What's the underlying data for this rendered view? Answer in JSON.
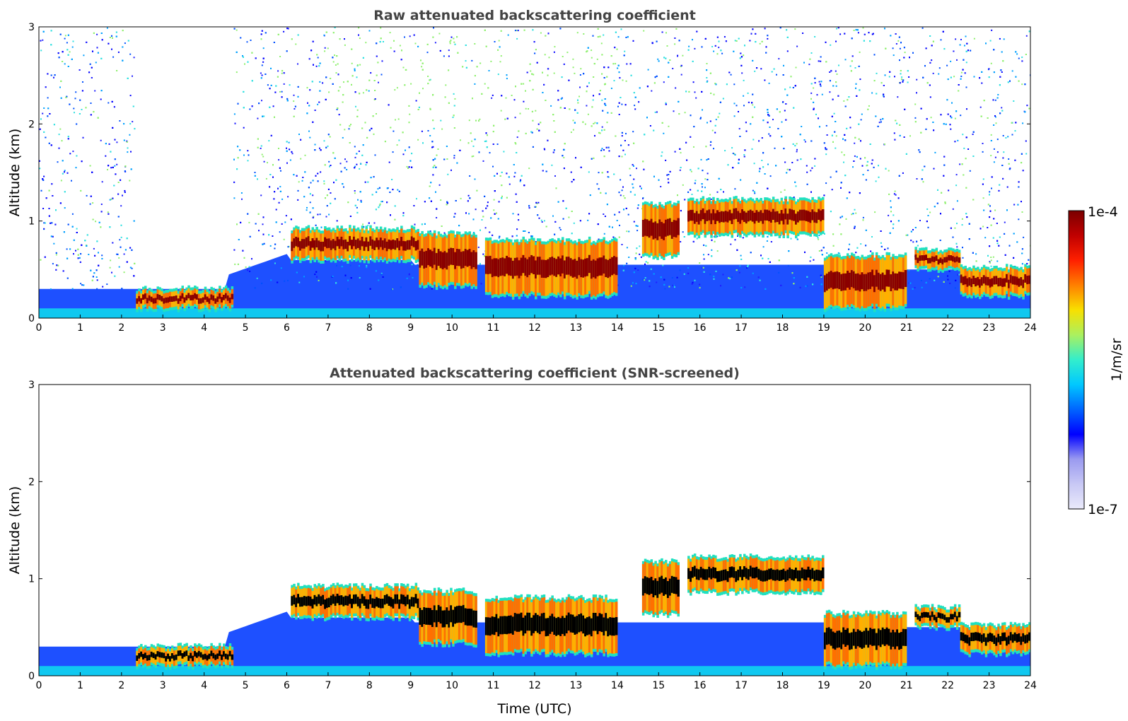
{
  "chart_data": [
    {
      "type": "heatmap",
      "title": "Raw attenuated backscattering coefficient",
      "xlabel": "",
      "ylabel": "Altitude (km)",
      "xlim": [
        0,
        24
      ],
      "ylim": [
        0,
        3
      ],
      "xticks": [
        "0",
        "1",
        "2",
        "3",
        "4",
        "5",
        "6",
        "7",
        "8",
        "9",
        "10",
        "11",
        "12",
        "13",
        "14",
        "15",
        "16",
        "17",
        "18",
        "19",
        "20",
        "21",
        "22",
        "23",
        "24"
      ],
      "yticks": [
        "0",
        "1",
        "2",
        "3"
      ],
      "noise": "high",
      "layers": [
        {
          "t": [
            2.35,
            4.7
          ],
          "base": 0.12,
          "top": 0.28
        },
        {
          "t": [
            6.1,
            9.2
          ],
          "base": 0.62,
          "top": 0.9
        },
        {
          "t": [
            9.2,
            10.6
          ],
          "base": 0.35,
          "top": 0.85
        },
        {
          "t": [
            10.8,
            14.0
          ],
          "base": 0.25,
          "top": 0.78
        },
        {
          "t": [
            14.6,
            15.5
          ],
          "base": 0.65,
          "top": 1.15
        },
        {
          "t": [
            15.7,
            19.0
          ],
          "base": 0.88,
          "top": 1.2
        },
        {
          "t": [
            19.0,
            21.0
          ],
          "base": 0.12,
          "top": 0.62
        },
        {
          "t": [
            21.2,
            22.3
          ],
          "base": 0.52,
          "top": 0.68
        },
        {
          "t": [
            22.3,
            24.0
          ],
          "base": 0.25,
          "top": 0.5
        }
      ]
    },
    {
      "type": "heatmap",
      "title": "Attenuated backscattering coefficient (SNR-screened)",
      "xlabel": "Time (UTC)",
      "ylabel": "Altitude (km)",
      "xlim": [
        0,
        24
      ],
      "ylim": [
        0,
        3
      ],
      "xticks": [
        "0",
        "1",
        "2",
        "3",
        "4",
        "5",
        "6",
        "7",
        "8",
        "9",
        "10",
        "11",
        "12",
        "13",
        "14",
        "15",
        "16",
        "17",
        "18",
        "19",
        "20",
        "21",
        "22",
        "23",
        "24"
      ],
      "yticks": [
        "0",
        "1",
        "2",
        "3"
      ],
      "noise": "screened",
      "layers": [
        {
          "t": [
            2.35,
            4.7
          ],
          "base": 0.12,
          "top": 0.28
        },
        {
          "t": [
            6.1,
            9.2
          ],
          "base": 0.62,
          "top": 0.9
        },
        {
          "t": [
            9.2,
            10.6
          ],
          "base": 0.35,
          "top": 0.85
        },
        {
          "t": [
            10.8,
            14.0
          ],
          "base": 0.25,
          "top": 0.78
        },
        {
          "t": [
            14.6,
            15.5
          ],
          "base": 0.65,
          "top": 1.15
        },
        {
          "t": [
            15.7,
            19.0
          ],
          "base": 0.88,
          "top": 1.2
        },
        {
          "t": [
            19.0,
            21.0
          ],
          "base": 0.12,
          "top": 0.62
        },
        {
          "t": [
            21.2,
            22.3
          ],
          "base": 0.52,
          "top": 0.68
        },
        {
          "t": [
            22.3,
            24.0
          ],
          "base": 0.25,
          "top": 0.5
        }
      ]
    }
  ],
  "colorbar": {
    "label": "1/m/sr",
    "max_label": "1e-4",
    "min_label": "1e-7",
    "colors": [
      "#eaeafa",
      "#c8c8f5",
      "#9a9af0",
      "#0000ff",
      "#0064ff",
      "#00c8ff",
      "#33eecc",
      "#aaf060",
      "#f8e000",
      "#ff8000",
      "#ff2000",
      "#c00000",
      "#7a0000"
    ]
  }
}
